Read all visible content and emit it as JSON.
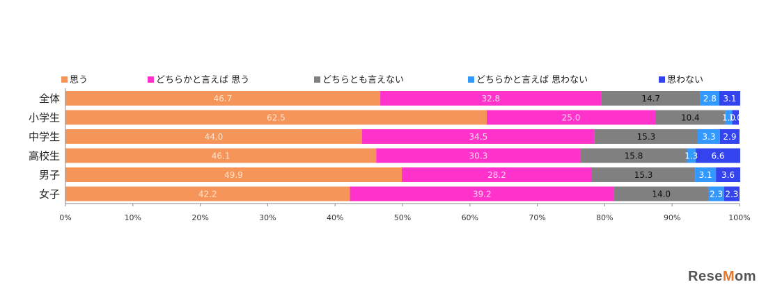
{
  "chart_data": {
    "type": "bar",
    "orientation": "horizontal",
    "stacked": true,
    "percent": true,
    "categories": [
      "全体",
      "小学生",
      "中学生",
      "高校生",
      "男子",
      "女子"
    ],
    "series": [
      {
        "name": "思う",
        "color": "#f5955a",
        "values": [
          46.7,
          62.5,
          44.0,
          46.1,
          49.9,
          42.2
        ]
      },
      {
        "name": "どちらかと言えば 思う",
        "color": "#ff33cc",
        "values": [
          32.8,
          25.0,
          34.5,
          30.3,
          28.2,
          39.2
        ]
      },
      {
        "name": "どちらとも言えない",
        "color": "#808080",
        "values": [
          14.7,
          10.4,
          15.3,
          15.8,
          15.3,
          14.0
        ]
      },
      {
        "name": "どちらかと言えば 思わない",
        "color": "#3399ff",
        "values": [
          2.8,
          1.0,
          3.3,
          1.3,
          3.1,
          2.3
        ]
      },
      {
        "name": "思わない",
        "color": "#3344ee",
        "values": [
          3.1,
          1.0,
          2.9,
          6.6,
          3.6,
          2.3
        ]
      }
    ],
    "value_labels": [
      [
        "46.7",
        "32.8",
        "14.7",
        "2.8",
        "3.1"
      ],
      [
        "62.5",
        "25.0",
        "10.4",
        "1.0",
        "1.0"
      ],
      [
        "44.0",
        "34.5",
        "15.3",
        "3.3",
        "2.9"
      ],
      [
        "46.1",
        "30.3",
        "15.8",
        "1.3",
        "6.6"
      ],
      [
        "49.9",
        "28.2",
        "15.3",
        "3.1",
        "3.6"
      ],
      [
        "42.2",
        "39.2",
        "14.0",
        "2.3",
        "2.3"
      ]
    ],
    "x_ticks": [
      "0%",
      "10%",
      "20%",
      "30%",
      "40%",
      "50%",
      "60%",
      "70%",
      "80%",
      "90%",
      "100%"
    ],
    "xlim": [
      0,
      100
    ],
    "legend_position": "top",
    "grid": false
  },
  "watermark": {
    "text_pre": "Rese",
    "text_o": "M",
    "text_post": "om"
  }
}
